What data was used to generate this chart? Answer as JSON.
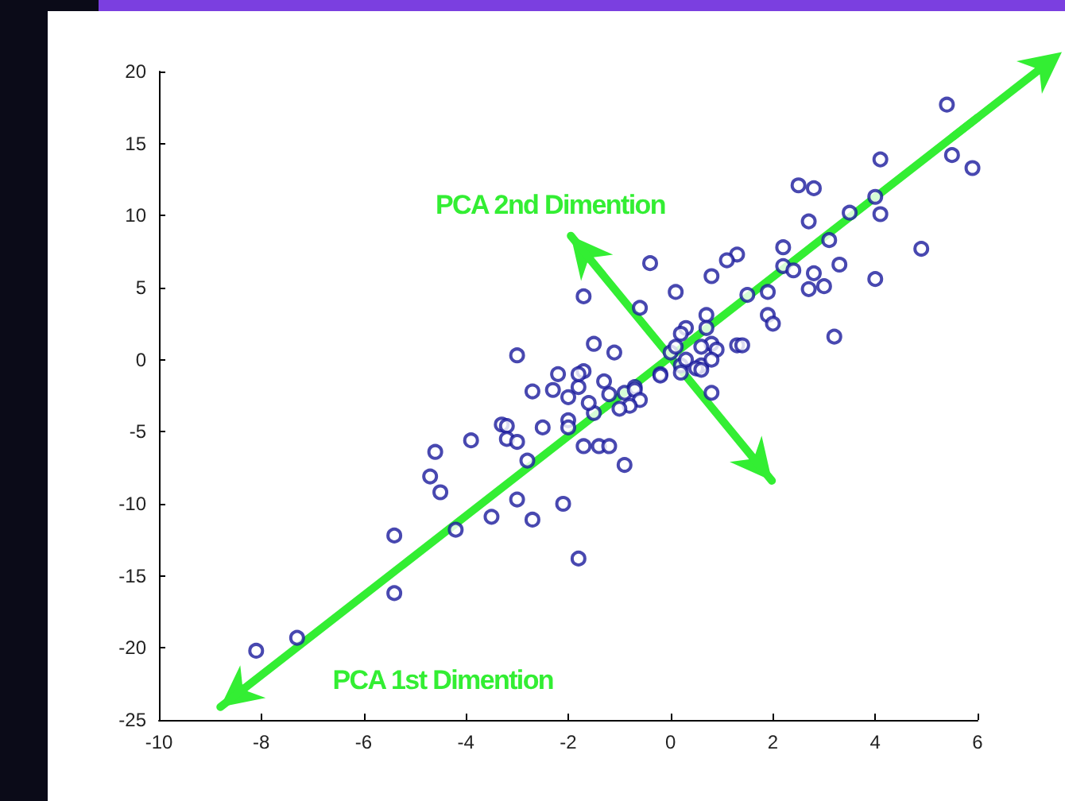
{
  "chart_data": {
    "type": "scatter",
    "annotations": [
      "PCA 2nd Dimention",
      "PCA 1st Dimention"
    ],
    "xlim": [
      -10,
      6
    ],
    "xticks": [
      -10,
      -8,
      -6,
      -4,
      -2,
      0,
      2,
      4,
      6
    ],
    "ylim": [
      -25,
      20
    ],
    "yticks": [
      -25,
      -20,
      -15,
      -10,
      -5,
      0,
      5,
      10,
      15,
      20
    ],
    "grid": false,
    "marker": "circle",
    "series": [
      {
        "type": "line",
        "color": "#33ee33",
        "marker": "none",
        "x": [
          -8.8,
          6
        ],
        "values": [
          -24.1,
          16.8
        ]
      },
      {
        "type": "line",
        "color": "#33ee33",
        "marker": "none",
        "x": [
          -1.95,
          1.98
        ],
        "values": [
          8.6,
          -8.4
        ]
      },
      {
        "color": "#1a1a9c",
        "x": [
          5.4,
          5.5,
          5.9,
          4.1,
          2.5,
          2.8,
          2.7,
          4.0,
          4.1,
          3.5,
          3.1,
          4.9,
          4.0,
          3.3,
          2.8,
          2.7,
          3.0,
          2.2,
          2.2,
          2.4,
          3.2,
          1.9,
          1.5,
          1.9,
          2.0,
          1.3,
          1.1,
          0.8,
          0.1,
          -0.4,
          -0.6,
          -1.7,
          0.7,
          0.7,
          0.3,
          0.2,
          0.8,
          0.9,
          1.3,
          1.4,
          0.6,
          0.6,
          0.8,
          0.0,
          0.1,
          0.2,
          -0.2,
          0.3,
          0.5,
          -1.5,
          -1.1,
          -1.7,
          -1.3,
          -1.8,
          -0.7,
          -0.9,
          0.8,
          -0.2,
          0.2,
          0.6,
          -1.7,
          -1.4,
          -1.2,
          -0.9,
          -0.7,
          -0.6,
          -0.8,
          -1.0,
          -1.5,
          -1.6,
          -1.2,
          -1.8,
          -8.1,
          -7.3,
          -5.4,
          -5.4,
          -4.2,
          -3.5,
          -2.7,
          -3.0,
          -2.1,
          -4.7,
          -4.5,
          -4.6,
          -3.9,
          -3.3,
          -3.2,
          -3.2,
          -3.0,
          -2.8,
          -2.5,
          -2.0,
          -2.0,
          -2.7,
          -2.3,
          -2.0,
          -2.2,
          -3.0,
          -1.8
        ],
        "values": [
          17.7,
          14.2,
          13.3,
          13.9,
          12.1,
          11.9,
          9.6,
          11.3,
          10.1,
          10.2,
          8.3,
          7.7,
          5.6,
          6.6,
          6.0,
          4.9,
          5.1,
          7.8,
          6.5,
          6.2,
          1.6,
          4.7,
          4.5,
          3.1,
          2.5,
          7.3,
          6.9,
          5.8,
          4.7,
          6.7,
          3.6,
          4.4,
          3.1,
          2.2,
          2.2,
          1.8,
          1.1,
          0.7,
          1.0,
          1.0,
          0.9,
          -0.4,
          0.0,
          0.5,
          0.9,
          -0.4,
          -1.0,
          0.0,
          -0.6,
          1.1,
          0.5,
          -0.8,
          -1.5,
          -1.9,
          -1.9,
          -2.3,
          -2.3,
          -1.1,
          -0.9,
          -0.7,
          -6.0,
          -6.0,
          -6.0,
          -7.3,
          -2.1,
          -2.8,
          -3.2,
          -3.4,
          -3.7,
          -3.0,
          -2.4,
          -13.8,
          -20.2,
          -19.3,
          -16.2,
          -12.2,
          -11.8,
          -10.9,
          -11.1,
          -9.7,
          -10.0,
          -8.1,
          -9.2,
          -6.4,
          -5.6,
          -4.5,
          -4.6,
          -5.5,
          -5.7,
          -7.0,
          -4.7,
          -4.2,
          -4.7,
          -2.2,
          -2.1,
          -2.6,
          -1.0,
          0.3,
          -1.0
        ]
      }
    ]
  }
}
